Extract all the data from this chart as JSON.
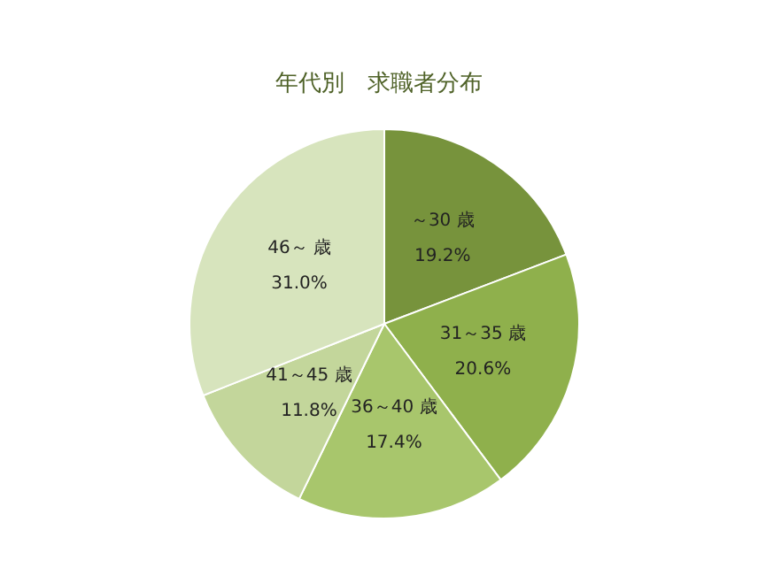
{
  "chart_data": {
    "type": "pie",
    "title": "年代別　求職者分布",
    "categories": [
      "～30 歳",
      "31～35 歳",
      "36～40 歳",
      "41～45 歳",
      "46～ 歳"
    ],
    "values": [
      19.2,
      20.6,
      17.4,
      11.8,
      31.0
    ],
    "value_labels": [
      "19.2%",
      "20.6%",
      "17.4%",
      "11.8%",
      "31.0%"
    ],
    "colors": [
      "#77933c",
      "#8fb04c",
      "#a8c66c",
      "#c3d69b",
      "#d7e4bd"
    ],
    "legend": false
  }
}
